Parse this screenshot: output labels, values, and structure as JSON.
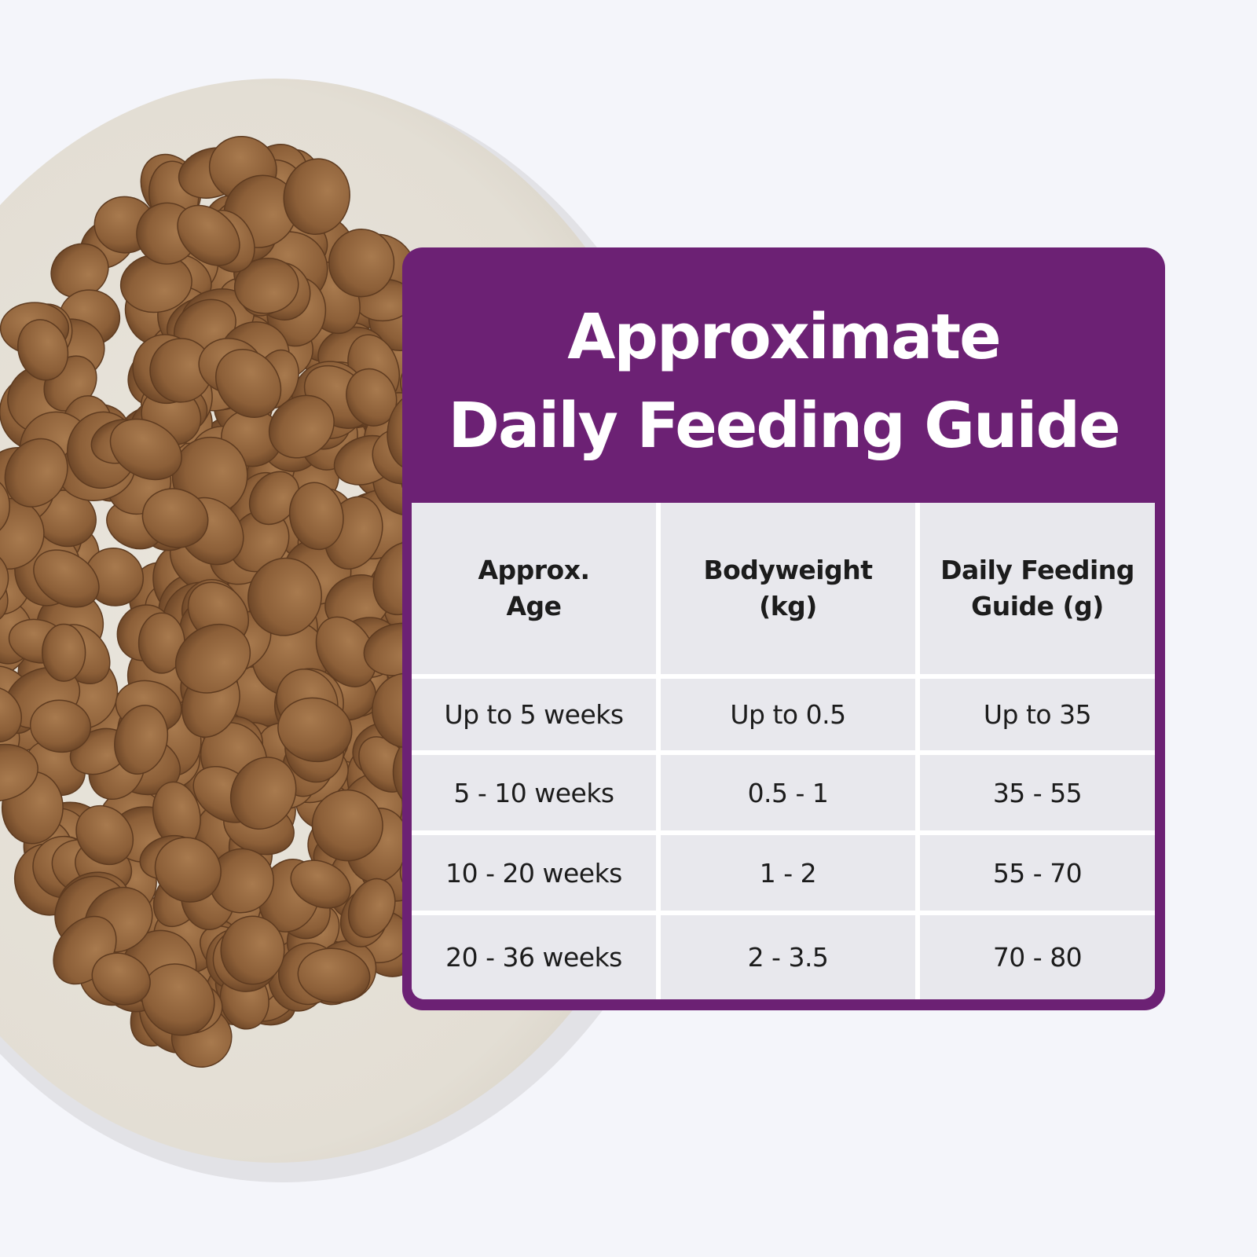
{
  "title": {
    "line1": "Approximate",
    "line2": "Daily Feeding Guide"
  },
  "table": {
    "headers": [
      {
        "line1": "Approx.",
        "line2": "Age"
      },
      {
        "line1": "Bodyweight",
        "line2": "(kg)"
      },
      {
        "line1": "Daily Feeding",
        "line2": "Guide (g)"
      }
    ],
    "rows": [
      [
        "Up to 5 weeks",
        "Up to 0.5",
        "Up to 35"
      ],
      [
        "5 - 10 weeks",
        "0.5 - 1",
        "35 - 55"
      ],
      [
        "10 - 20 weeks",
        "1 - 2",
        "55 - 70"
      ],
      [
        "20 - 36 weeks",
        "2 - 3.5",
        "70 - 80"
      ]
    ]
  },
  "colors": {
    "background": "#f4f5fa",
    "card_purple": "#6c2174",
    "cell_grey": "#e8e8ed",
    "bowl": "#e6e1d8",
    "kibble": "#8f6039"
  }
}
